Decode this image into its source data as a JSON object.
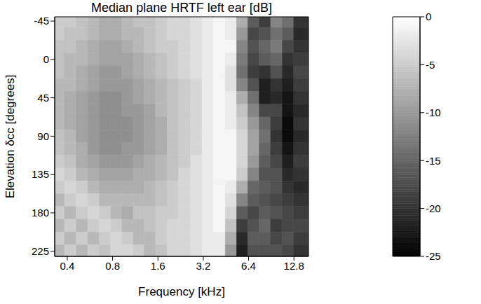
{
  "chart_data": {
    "type": "heatmap",
    "title": "Median plane HRTF left ear [dB]",
    "x_label": "Frequency [kHz]",
    "y_label": "Elevation δcc [degrees]",
    "log": "x",
    "x": [
      0.35,
      0.42,
      0.5,
      0.6,
      0.71,
      0.85,
      1.0,
      1.2,
      1.4,
      1.7,
      2.0,
      2.4,
      2.9,
      3.4,
      4.1,
      4.9,
      5.8,
      6.9,
      8.2,
      9.8,
      11.7,
      13.9
    ],
    "y": [
      -45,
      -30,
      -15,
      0,
      15,
      30,
      45,
      60,
      75,
      90,
      105,
      120,
      135,
      150,
      165,
      180,
      195,
      210,
      225
    ],
    "cells": [
      [
        -5,
        -5,
        -6,
        -7,
        -8,
        -8,
        -7,
        -6,
        -6,
        -5,
        -4,
        -4,
        -3,
        -2,
        -1,
        -2,
        -8,
        -16,
        -19,
        -12,
        -14,
        -20
      ],
      [
        -5,
        -6,
        -6,
        -7,
        -8,
        -8,
        -7,
        -7,
        -6,
        -5,
        -4,
        -4,
        -3,
        -2,
        -1,
        -2,
        -10,
        -18,
        -17,
        -14,
        -16,
        -21
      ],
      [
        -6,
        -6,
        -7,
        -8,
        -9,
        -9,
        -8,
        -7,
        -6,
        -5,
        -5,
        -4,
        -3,
        -2,
        -1,
        -1,
        -12,
        -17,
        -15,
        -13,
        -18,
        -20
      ],
      [
        -6,
        -7,
        -7,
        -8,
        -9,
        -9,
        -9,
        -8,
        -7,
        -6,
        -5,
        -4,
        -3,
        -2,
        -1,
        -2,
        -13,
        -18,
        -16,
        -15,
        -20,
        -19
      ],
      [
        -6,
        -7,
        -8,
        -9,
        -10,
        -10,
        -9,
        -8,
        -7,
        -6,
        -5,
        -4,
        -3,
        -2,
        -1,
        -3,
        -14,
        -19,
        -20,
        -17,
        -21,
        -18
      ],
      [
        -7,
        -7,
        -8,
        -9,
        -10,
        -10,
        -10,
        -9,
        -8,
        -7,
        -6,
        -5,
        -4,
        -2,
        -1,
        -3,
        -12,
        -17,
        -22,
        -20,
        -22,
        -19
      ],
      [
        -7,
        -8,
        -9,
        -10,
        -11,
        -11,
        -10,
        -9,
        -8,
        -7,
        -6,
        -5,
        -4,
        -2,
        -1,
        -2,
        -8,
        -14,
        -22,
        -21,
        -23,
        -20
      ],
      [
        -7,
        -8,
        -9,
        -10,
        -11,
        -11,
        -10,
        -10,
        -9,
        -7,
        -6,
        -5,
        -4,
        -2,
        -1,
        -2,
        -6,
        -12,
        -18,
        -18,
        -23,
        -21
      ],
      [
        -7,
        -8,
        -9,
        -10,
        -11,
        -11,
        -11,
        -10,
        -9,
        -8,
        -6,
        -5,
        -4,
        -2,
        -1,
        -2,
        -5,
        -10,
        -15,
        -19,
        -24,
        -20
      ],
      [
        -6,
        -7,
        -9,
        -10,
        -11,
        -11,
        -11,
        -10,
        -9,
        -8,
        -6,
        -5,
        -4,
        -2,
        -1,
        -1,
        -4,
        -9,
        -14,
        -20,
        -24,
        -21
      ],
      [
        -6,
        -7,
        -8,
        -10,
        -11,
        -11,
        -10,
        -10,
        -9,
        -8,
        -6,
        -5,
        -4,
        -2,
        -1,
        -1,
        -4,
        -9,
        -15,
        -19,
        -23,
        -20
      ],
      [
        -5,
        -6,
        -8,
        -9,
        -10,
        -10,
        -10,
        -9,
        -8,
        -7,
        -6,
        -5,
        -3,
        -2,
        -1,
        -1,
        -4,
        -10,
        -16,
        -18,
        -22,
        -19
      ],
      [
        -4,
        -5,
        -7,
        -8,
        -9,
        -9,
        -9,
        -8,
        -8,
        -7,
        -6,
        -4,
        -3,
        -2,
        -1,
        -1,
        -5,
        -12,
        -17,
        -17,
        -21,
        -20
      ],
      [
        -5,
        -4,
        -5,
        -7,
        -8,
        -8,
        -8,
        -8,
        -7,
        -6,
        -5,
        -4,
        -3,
        -2,
        -1,
        -2,
        -8,
        -15,
        -16,
        -17,
        -20,
        -21
      ],
      [
        -7,
        -5,
        -4,
        -5,
        -7,
        -7,
        -7,
        -7,
        -7,
        -6,
        -5,
        -4,
        -3,
        -2,
        -1,
        -3,
        -12,
        -16,
        -17,
        -18,
        -19,
        -20
      ],
      [
        -5,
        -7,
        -5,
        -4,
        -5,
        -7,
        -8,
        -6,
        -6,
        -5,
        -5,
        -4,
        -3,
        -2,
        -1,
        -4,
        -16,
        -18,
        -16,
        -17,
        -18,
        -19
      ],
      [
        -7,
        -5,
        -7,
        -5,
        -4,
        -5,
        -7,
        -7,
        -6,
        -5,
        -4,
        -4,
        -3,
        -2,
        -1,
        -6,
        -19,
        -17,
        -15,
        -19,
        -18,
        -18
      ],
      [
        -5,
        -7,
        -5,
        -7,
        -5,
        -4,
        -5,
        -7,
        -7,
        -5,
        -4,
        -4,
        -3,
        -2,
        -2,
        -8,
        -21,
        -16,
        -16,
        -18,
        -17,
        -19
      ],
      [
        -7,
        -5,
        -7,
        -5,
        -6,
        -4,
        -4,
        -5,
        -7,
        -6,
        -4,
        -4,
        -3,
        -2,
        -2,
        -10,
        -22,
        -17,
        -17,
        -17,
        -18,
        -20
      ]
    ],
    "xlim": [
      0.33,
      16
    ],
    "xticks": [
      0.4,
      0.8,
      1.6,
      3.2,
      6.4,
      12.8
    ],
    "ylim": [
      -50,
      231
    ],
    "yticks": [
      -45,
      0,
      45,
      90,
      135,
      180,
      225
    ],
    "colorbar": {
      "range": [
        -25,
        0
      ],
      "ticks": [
        0,
        -5,
        -10,
        -15,
        -20,
        -25
      ]
    }
  }
}
